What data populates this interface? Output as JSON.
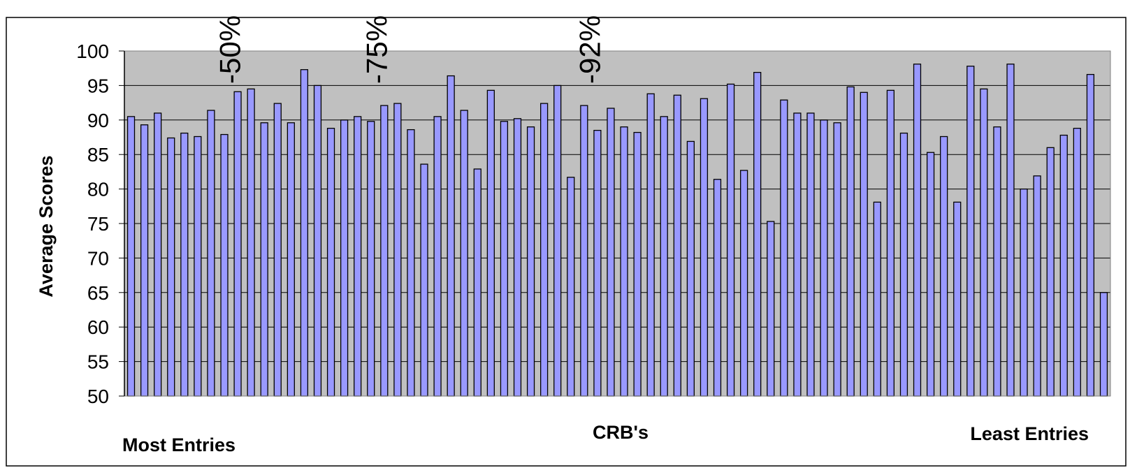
{
  "chart_data": {
    "type": "bar",
    "title": "",
    "xlabel": "CRB's",
    "ylabel": "Average Scores",
    "ylim": [
      50,
      100
    ],
    "yticks": [
      50,
      55,
      60,
      65,
      70,
      75,
      80,
      85,
      90,
      95,
      100
    ],
    "grid": true,
    "legend": "none",
    "colors": {
      "plot_background": "#c0c0c0",
      "bar_fill": "#9999ff",
      "bar_stroke": "#000000",
      "grid": "#000000",
      "frame": "#000000"
    },
    "annotations": {
      "left": "Most Entries",
      "right": "Least Entries"
    },
    "markers": [
      {
        "label": "-50%",
        "after_index": 8
      },
      {
        "label": "-75%",
        "after_index": 19
      },
      {
        "label": "-92%",
        "after_index": 35
      }
    ],
    "values": [
      90.5,
      89.3,
      91.0,
      87.4,
      88.1,
      87.6,
      91.4,
      87.9,
      94.1,
      94.5,
      89.6,
      92.4,
      89.6,
      97.3,
      95.0,
      88.8,
      90.0,
      90.5,
      89.8,
      92.1,
      92.4,
      88.6,
      83.6,
      90.5,
      96.4,
      91.4,
      82.9,
      94.3,
      89.8,
      90.2,
      89.0,
      92.4,
      95.0,
      81.7,
      92.1,
      88.5,
      91.7,
      89.0,
      88.2,
      93.8,
      90.5,
      93.6,
      86.9,
      93.1,
      81.4,
      95.2,
      82.7,
      96.9,
      75.3,
      92.9,
      91.0,
      91.0,
      90.0,
      89.6,
      94.8,
      94.0,
      78.1,
      94.3,
      88.1,
      98.1,
      85.3,
      87.6,
      78.1,
      97.8,
      94.5,
      89.0,
      98.1,
      80.0,
      81.9,
      86.0,
      87.8,
      88.8,
      96.6,
      65.0
    ]
  }
}
